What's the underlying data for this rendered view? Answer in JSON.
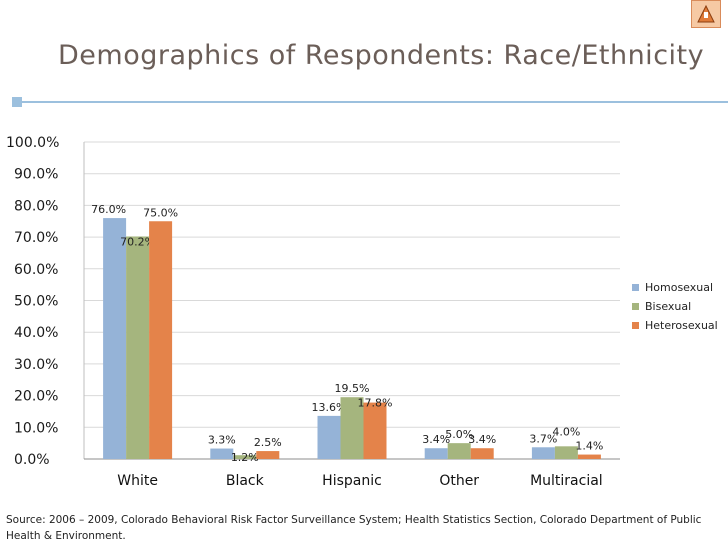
{
  "title": "Demographics of Respondents: Race/Ethnicity",
  "source": "Source: 2006 – 2009, Colorado Behavioral Risk Factor Surveillance System; Health Statistics Section, Colorado Department of Public Health & Environment.",
  "colors": {
    "title": "#6b5e58",
    "accent": "#9cc0de",
    "grid": "#d9d9d9"
  },
  "icons": {
    "corner": "presentation-badge-icon"
  },
  "chart_data": {
    "type": "bar",
    "title": "",
    "xlabel": "",
    "ylabel": "",
    "ylim": [
      0,
      100
    ],
    "yticks": [
      0,
      10,
      20,
      30,
      40,
      50,
      60,
      70,
      80,
      90,
      100
    ],
    "ytick_labels": [
      "0.0%",
      "10.0%",
      "20.0%",
      "30.0%",
      "40.0%",
      "50.0%",
      "60.0%",
      "70.0%",
      "80.0%",
      "90.0%",
      "100.0%"
    ],
    "grid": true,
    "legend_position": "right",
    "categories": [
      "White",
      "Black",
      "Hispanic",
      "Other",
      "Multiracial"
    ],
    "series": [
      {
        "name": "Homosexual",
        "color": "#95b3d7",
        "values": [
          76.0,
          3.3,
          13.6,
          3.4,
          3.7
        ],
        "labels": [
          "76.0%",
          "3.3%",
          "13.6%",
          "3.4%",
          "3.7%"
        ]
      },
      {
        "name": "Bisexual",
        "color": "#a5b57e",
        "values": [
          70.2,
          1.2,
          19.5,
          5.0,
          4.0
        ],
        "labels": [
          "70.2%",
          "1.2%",
          "19.5%",
          "5.0%",
          "4.0%"
        ]
      },
      {
        "name": "Heterosexual",
        "color": "#e4834a",
        "values": [
          75.0,
          2.5,
          17.8,
          3.4,
          1.4
        ],
        "labels": [
          "75.0%",
          "2.5%",
          "17.8%",
          "3.4%",
          "1.4%"
        ]
      }
    ]
  }
}
